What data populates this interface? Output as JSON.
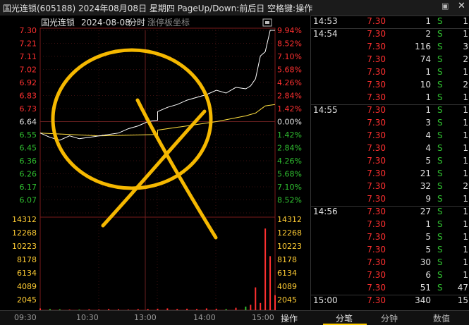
{
  "window": {
    "title": "国光连锁(605188) 2024年08月08日 星期四 PageUp/Down:前后日 空格键:操作"
  },
  "chart_header": {
    "stock_name": "国光连锁",
    "date": "2024-08-08",
    "mode": "分时",
    "extra": "涨停板坐标"
  },
  "colors": {
    "up": "#ff3030",
    "down": "#30c030",
    "price_line": "#ffffff",
    "avg_line": "#ffe040",
    "annotation": "#f5b800"
  },
  "price_axis": {
    "left": [
      "7.30",
      "7.21",
      "7.11",
      "7.02",
      "6.92",
      "6.83",
      "6.73",
      "6.64",
      "6.55",
      "6.45",
      "6.36",
      "6.26",
      "6.17",
      "6.07"
    ],
    "right": [
      "9.94%",
      "8.52%",
      "7.10%",
      "5.68%",
      "4.26%",
      "2.84%",
      "1.42%",
      "0.00%",
      "1.42%",
      "2.84%",
      "4.26%",
      "5.68%",
      "7.10%",
      "8.52%"
    ]
  },
  "volume_axis": {
    "labels": [
      "14312",
      "12268",
      "10223",
      "8178",
      "6134",
      "4089",
      "2045"
    ]
  },
  "time_axis": {
    "labels": [
      "09:30",
      "10:30",
      "13:00",
      "14:00",
      "15:00"
    ]
  },
  "chart_data": {
    "type": "line",
    "title": "",
    "xlabel": "",
    "ylabel": "",
    "ylim": [
      6.02,
      7.3
    ],
    "prev_close": 6.64,
    "series": [
      {
        "x": [
          "09:30",
          "09:40",
          "09:50",
          "10:00",
          "10:10",
          "10:20",
          "10:30",
          "10:40",
          "10:50",
          "11:00",
          "11:10",
          "11:20",
          "11:30",
          "13:00",
          "13:10",
          "13:20",
          "13:30",
          "13:40",
          "13:50",
          "14:00",
          "14:10",
          "14:20",
          "14:30",
          "14:35",
          "14:40",
          "14:45",
          "14:50",
          "14:55",
          "15:00"
        ],
        "values": [
          6.58,
          6.55,
          6.53,
          6.56,
          6.54,
          6.55,
          6.56,
          6.57,
          6.58,
          6.61,
          6.63,
          6.66,
          6.67,
          6.73,
          6.76,
          6.78,
          6.81,
          6.83,
          6.85,
          6.88,
          6.86,
          6.9,
          6.89,
          6.91,
          6.96,
          7.12,
          7.15,
          7.3,
          7.3
        ]
      },
      {
        "x": [
          "09:30",
          "10:30",
          "11:30",
          "13:00",
          "13:30",
          "14:00",
          "14:30",
          "14:40",
          "14:50",
          "15:00"
        ],
        "values": [
          6.58,
          6.56,
          6.57,
          6.6,
          6.63,
          6.66,
          6.7,
          6.72,
          6.77,
          6.78
        ]
      }
    ],
    "volume": [
      300,
      200,
      150,
      100,
      100,
      150,
      120,
      200,
      150,
      100,
      180,
      200,
      150,
      250,
      300,
      200,
      250,
      200,
      300,
      250,
      200,
      400,
      600,
      900,
      3800,
      1200,
      13600,
      9000,
      2500
    ]
  },
  "ticks": [
    {
      "time": "14:53",
      "price": "7.30",
      "vol": "1",
      "bs": "S",
      "cnt": "1"
    },
    {
      "time": "14:54",
      "price": "7.30",
      "vol": "2",
      "bs": "S",
      "cnt": "1"
    },
    {
      "time": "",
      "price": "7.30",
      "vol": "116",
      "bs": "S",
      "cnt": "3"
    },
    {
      "time": "",
      "price": "7.30",
      "vol": "74",
      "bs": "S",
      "cnt": "2"
    },
    {
      "time": "",
      "price": "7.30",
      "vol": "1",
      "bs": "S",
      "cnt": "1"
    },
    {
      "time": "",
      "price": "7.30",
      "vol": "10",
      "bs": "S",
      "cnt": "2"
    },
    {
      "time": "",
      "price": "7.30",
      "vol": "1",
      "bs": "S",
      "cnt": "1"
    },
    {
      "time": "14:55",
      "price": "7.30",
      "vol": "1",
      "bs": "S",
      "cnt": "1"
    },
    {
      "time": "",
      "price": "7.30",
      "vol": "3",
      "bs": "S",
      "cnt": "1"
    },
    {
      "time": "",
      "price": "7.30",
      "vol": "4",
      "bs": "S",
      "cnt": "1"
    },
    {
      "time": "",
      "price": "7.30",
      "vol": "4",
      "bs": "S",
      "cnt": "1"
    },
    {
      "time": "",
      "price": "7.30",
      "vol": "5",
      "bs": "S",
      "cnt": "1"
    },
    {
      "time": "",
      "price": "7.30",
      "vol": "21",
      "bs": "S",
      "cnt": "1"
    },
    {
      "time": "",
      "price": "7.30",
      "vol": "32",
      "bs": "S",
      "cnt": "2"
    },
    {
      "time": "",
      "price": "7.30",
      "vol": "9",
      "bs": "S",
      "cnt": "1"
    },
    {
      "time": "14:56",
      "price": "7.30",
      "vol": "27",
      "bs": "S",
      "cnt": "1"
    },
    {
      "time": "",
      "price": "7.30",
      "vol": "1",
      "bs": "S",
      "cnt": "1"
    },
    {
      "time": "",
      "price": "7.30",
      "vol": "5",
      "bs": "S",
      "cnt": "1"
    },
    {
      "time": "",
      "price": "7.30",
      "vol": "5",
      "bs": "S",
      "cnt": "1"
    },
    {
      "time": "",
      "price": "7.30",
      "vol": "30",
      "bs": "S",
      "cnt": "1"
    },
    {
      "time": "",
      "price": "7.30",
      "vol": "6",
      "bs": "S",
      "cnt": "1"
    },
    {
      "time": "",
      "price": "7.30",
      "vol": "51",
      "bs": "S",
      "cnt": "47"
    },
    {
      "time": "15:00",
      "price": "7.30",
      "vol": "340",
      "bs": "",
      "cnt": "15"
    }
  ],
  "bottom": {
    "operate": "操作",
    "tabs": [
      "分笔",
      "分钟",
      "数值"
    ]
  }
}
